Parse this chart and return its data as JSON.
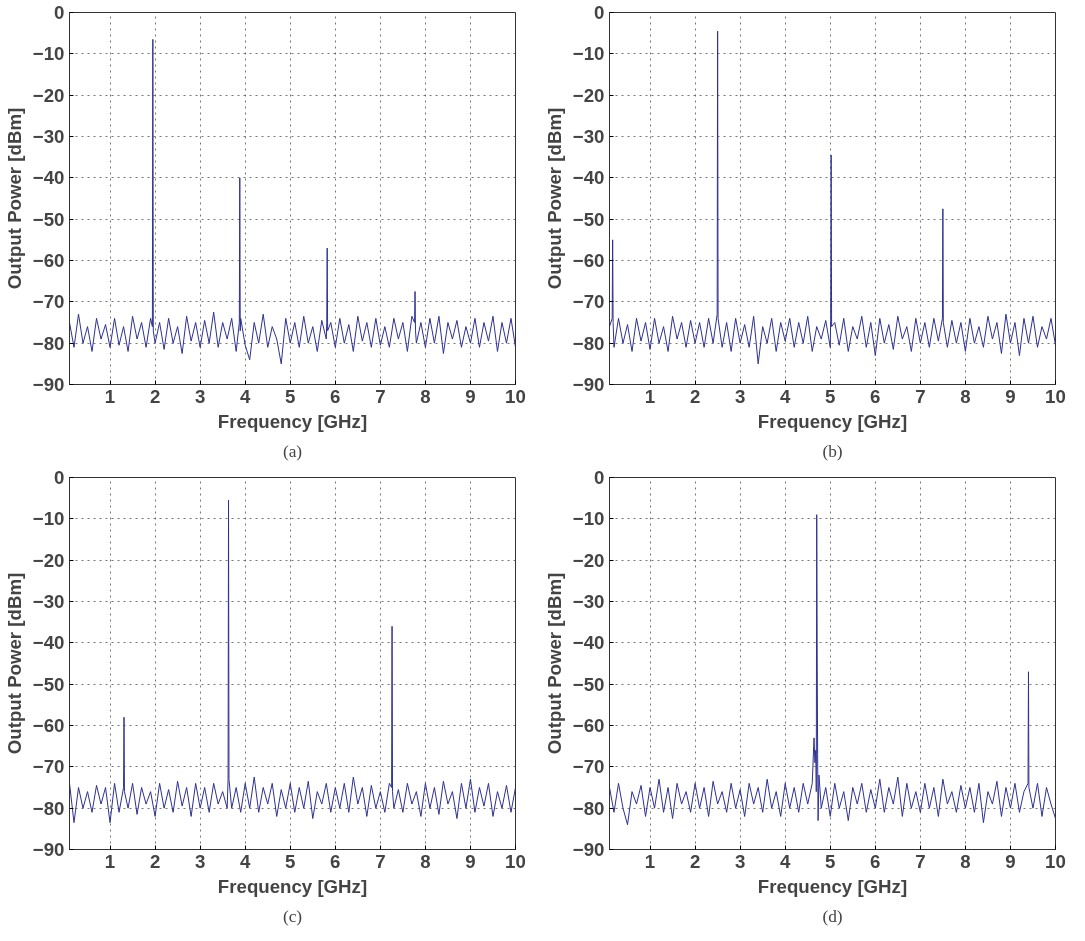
{
  "chart_data": [
    {
      "type": "line",
      "xlabel": "Frequency [GHz]",
      "ylabel": "Output Power [dBm]",
      "annotations": [
        "(a)"
      ],
      "xlim": [
        0.1,
        10
      ],
      "xticks": [
        1,
        2,
        3,
        4,
        5,
        6,
        7,
        8,
        9,
        10
      ],
      "ylim": [
        -90,
        0
      ],
      "yticks": [
        -90,
        -80,
        -70,
        -60,
        -50,
        -40,
        -30,
        -20,
        -10,
        0
      ],
      "grid": true,
      "series": [
        {
          "color": "#2e3192",
          "x": [
            0.1,
            0.2,
            0.3,
            0.4,
            0.5,
            0.6,
            0.7,
            0.8,
            0.9,
            1.0,
            1.1,
            1.2,
            1.3,
            1.4,
            1.5,
            1.6,
            1.7,
            1.8,
            1.9,
            1.94,
            1.95,
            1.96,
            2.0,
            2.1,
            2.2,
            2.3,
            2.4,
            2.5,
            2.6,
            2.7,
            2.8,
            2.9,
            3.0,
            3.1,
            3.2,
            3.3,
            3.4,
            3.5,
            3.6,
            3.7,
            3.8,
            3.87,
            3.88,
            3.89,
            3.9,
            4.0,
            4.1,
            4.2,
            4.3,
            4.4,
            4.5,
            4.6,
            4.7,
            4.8,
            4.9,
            5.0,
            5.1,
            5.2,
            5.3,
            5.4,
            5.5,
            5.6,
            5.7,
            5.8,
            5.81,
            5.82,
            5.83,
            5.9,
            6.0,
            6.1,
            6.2,
            6.3,
            6.4,
            6.5,
            6.6,
            6.7,
            6.8,
            6.9,
            7.0,
            7.1,
            7.2,
            7.3,
            7.4,
            7.5,
            7.6,
            7.7,
            7.76,
            7.77,
            7.78,
            7.8,
            7.9,
            8.0,
            8.1,
            8.2,
            8.3,
            8.4,
            8.5,
            8.6,
            8.7,
            8.8,
            8.9,
            9.0,
            9.1,
            9.2,
            9.3,
            9.4,
            9.5,
            9.6,
            9.7,
            9.8,
            9.9,
            10.0
          ],
          "values": [
            -75,
            -81,
            -73,
            -80,
            -76,
            -82,
            -74,
            -79,
            -75.5,
            -81,
            -74,
            -80.5,
            -76,
            -82,
            -73.5,
            -79,
            -75,
            -81,
            -74,
            -76,
            -6.5,
            -77,
            -80,
            -75,
            -81.5,
            -74,
            -80,
            -76,
            -82.5,
            -73.5,
            -79.5,
            -75,
            -81,
            -74.5,
            -80,
            -72.5,
            -81,
            -75,
            -79,
            -74,
            -82,
            -75,
            -40,
            -77,
            -74,
            -80.5,
            -84,
            -75,
            -80,
            -73,
            -81,
            -76,
            -79,
            -85,
            -74,
            -80,
            -75,
            -81,
            -73.5,
            -80,
            -76,
            -82,
            -74.5,
            -79,
            -75,
            -57,
            -77,
            -75,
            -81,
            -74,
            -80,
            -75.5,
            -82,
            -73.5,
            -79.5,
            -75,
            -81,
            -74,
            -80.5,
            -76,
            -81,
            -74,
            -79,
            -75,
            -82,
            -73.5,
            -75,
            -67.5,
            -77,
            -80,
            -75,
            -81,
            -74,
            -80,
            -73.5,
            -82.5,
            -75,
            -79,
            -74.5,
            -81,
            -76,
            -80,
            -74,
            -81,
            -75,
            -79.5,
            -73.5,
            -82,
            -75,
            -80,
            -74,
            -81
          ]
        }
      ]
    },
    {
      "type": "line",
      "xlabel": "Frequency [GHz]",
      "ylabel": "Output Power [dBm]",
      "annotations": [
        "(b)"
      ],
      "xlim": [
        0.1,
        10
      ],
      "xticks": [
        1,
        2,
        3,
        4,
        5,
        6,
        7,
        8,
        9,
        10
      ],
      "ylim": [
        -90,
        0
      ],
      "yticks": [
        -90,
        -80,
        -70,
        -60,
        -50,
        -40,
        -30,
        -20,
        -10,
        0
      ],
      "grid": true,
      "series": [
        {
          "color": "#2e3192",
          "x": [
            0.1,
            0.16,
            0.17,
            0.18,
            0.2,
            0.3,
            0.4,
            0.5,
            0.6,
            0.7,
            0.8,
            0.9,
            1.0,
            1.1,
            1.2,
            1.3,
            1.4,
            1.5,
            1.6,
            1.7,
            1.8,
            1.9,
            2.0,
            2.1,
            2.2,
            2.3,
            2.4,
            2.49,
            2.5,
            2.51,
            2.6,
            2.7,
            2.8,
            2.9,
            3.0,
            3.1,
            3.2,
            3.3,
            3.4,
            3.5,
            3.6,
            3.7,
            3.8,
            3.9,
            4.0,
            4.1,
            4.2,
            4.3,
            4.4,
            4.5,
            4.6,
            4.7,
            4.8,
            4.9,
            5.0,
            5.01,
            5.02,
            5.03,
            5.1,
            5.2,
            5.3,
            5.4,
            5.5,
            5.6,
            5.7,
            5.8,
            5.9,
            6.0,
            6.1,
            6.2,
            6.3,
            6.4,
            6.5,
            6.6,
            6.7,
            6.8,
            6.9,
            7.0,
            7.1,
            7.2,
            7.3,
            7.4,
            7.49,
            7.5,
            7.51,
            7.6,
            7.7,
            7.8,
            7.9,
            8.0,
            8.1,
            8.2,
            8.3,
            8.4,
            8.5,
            8.6,
            8.7,
            8.8,
            8.9,
            9.0,
            9.1,
            9.2,
            9.3,
            9.4,
            9.5,
            9.6,
            9.7,
            9.8,
            9.9,
            10.0
          ],
          "values": [
            -76,
            -74,
            -55,
            -75,
            -81,
            -74,
            -80,
            -75.5,
            -82,
            -74,
            -79.5,
            -75,
            -81.5,
            -74,
            -80,
            -76,
            -82,
            -73.5,
            -79,
            -75,
            -81,
            -74.5,
            -80,
            -75,
            -81,
            -74,
            -80,
            -73,
            -4.5,
            -74,
            -81,
            -75,
            -82,
            -74,
            -80,
            -75.5,
            -81,
            -73.5,
            -85,
            -76,
            -80,
            -74,
            -82,
            -75,
            -79.5,
            -74,
            -81,
            -75,
            -80,
            -73.5,
            -82,
            -76,
            -79,
            -74.5,
            -81,
            -74,
            -34.5,
            -76,
            -75,
            -80.5,
            -74,
            -82,
            -76,
            -79,
            -73.5,
            -81,
            -75,
            -83,
            -74,
            -80,
            -75.5,
            -81.5,
            -73.5,
            -79,
            -76,
            -82,
            -74,
            -80,
            -75,
            -81,
            -74,
            -79.5,
            -74,
            -47.5,
            -75,
            -81,
            -74.5,
            -80,
            -75,
            -82,
            -74,
            -80,
            -76,
            -81,
            -73.5,
            -79,
            -75,
            -82.5,
            -73,
            -80,
            -75,
            -83,
            -74,
            -80,
            -73.5,
            -81,
            -76,
            -79,
            -74,
            -80.5
          ]
        }
      ]
    },
    {
      "type": "line",
      "xlabel": "Frequency [GHz]",
      "ylabel": "Output Power [dBm]",
      "annotations": [
        "(c)"
      ],
      "xlim": [
        0.1,
        10
      ],
      "xticks": [
        1,
        2,
        3,
        4,
        5,
        6,
        7,
        8,
        9,
        10
      ],
      "ylim": [
        -90,
        0
      ],
      "yticks": [
        -90,
        -80,
        -70,
        -60,
        -50,
        -40,
        -30,
        -20,
        -10,
        0
      ],
      "grid": true,
      "series": [
        {
          "color": "#2e3192",
          "x": [
            0.1,
            0.2,
            0.3,
            0.4,
            0.5,
            0.6,
            0.7,
            0.8,
            0.9,
            1.0,
            1.1,
            1.2,
            1.3,
            1.31,
            1.32,
            1.4,
            1.5,
            1.6,
            1.7,
            1.8,
            1.9,
            2.0,
            2.1,
            2.2,
            2.3,
            2.4,
            2.5,
            2.6,
            2.7,
            2.8,
            2.9,
            3.0,
            3.1,
            3.2,
            3.3,
            3.4,
            3.5,
            3.6,
            3.62,
            3.63,
            3.64,
            3.7,
            3.8,
            3.9,
            4.0,
            4.1,
            4.2,
            4.3,
            4.4,
            4.5,
            4.6,
            4.7,
            4.8,
            4.9,
            5.0,
            5.1,
            5.2,
            5.3,
            5.4,
            5.5,
            5.6,
            5.7,
            5.8,
            5.9,
            6.0,
            6.1,
            6.2,
            6.3,
            6.4,
            6.5,
            6.6,
            6.7,
            6.8,
            6.9,
            7.0,
            7.1,
            7.2,
            7.25,
            7.26,
            7.27,
            7.3,
            7.4,
            7.5,
            7.6,
            7.7,
            7.8,
            7.9,
            8.0,
            8.1,
            8.2,
            8.3,
            8.4,
            8.5,
            8.6,
            8.7,
            8.8,
            8.9,
            9.0,
            9.1,
            9.2,
            9.3,
            9.4,
            9.5,
            9.6,
            9.7,
            9.8,
            9.9,
            10.0
          ],
          "values": [
            -74,
            -83.5,
            -75,
            -80,
            -76,
            -81,
            -74.5,
            -79,
            -75,
            -83.5,
            -74,
            -81,
            -75,
            -58,
            -76,
            -80,
            -74,
            -81.5,
            -75,
            -79,
            -76,
            -82,
            -74,
            -80,
            -75.5,
            -81,
            -73.5,
            -79.5,
            -75,
            -82,
            -74,
            -80,
            -75,
            -81,
            -74,
            -79,
            -76,
            -80,
            -73,
            -5.5,
            -73,
            -80,
            -75,
            -81,
            -74,
            -80,
            -72.5,
            -81,
            -75,
            -79,
            -74,
            -82,
            -75.5,
            -80,
            -74,
            -81,
            -75,
            -80,
            -73.5,
            -82.5,
            -76,
            -79,
            -74,
            -81,
            -75,
            -80,
            -74,
            -81,
            -72.5,
            -79,
            -75,
            -82,
            -74.5,
            -80,
            -76,
            -81,
            -74,
            -75,
            -36,
            -76,
            -80,
            -75.5,
            -81,
            -74,
            -79,
            -76,
            -82,
            -74,
            -80,
            -75,
            -81.5,
            -73.5,
            -79,
            -76,
            -82.5,
            -74,
            -80,
            -73,
            -81,
            -75,
            -79.5,
            -74,
            -82,
            -76,
            -80,
            -74.5,
            -81,
            -75
          ]
        }
      ]
    },
    {
      "type": "line",
      "xlabel": "Frequency [GHz]",
      "ylabel": "Output Power [dBm]",
      "annotations": [
        "(d)"
      ],
      "xlim": [
        0.1,
        10
      ],
      "xticks": [
        1,
        2,
        3,
        4,
        5,
        6,
        7,
        8,
        9,
        10
      ],
      "ylim": [
        -90,
        0
      ],
      "yticks": [
        -90,
        -80,
        -70,
        -60,
        -50,
        -40,
        -30,
        -20,
        -10,
        0
      ],
      "grid": true,
      "series": [
        {
          "color": "#2e3192",
          "x": [
            0.1,
            0.2,
            0.3,
            0.4,
            0.5,
            0.6,
            0.7,
            0.8,
            0.9,
            1.0,
            1.1,
            1.2,
            1.3,
            1.4,
            1.5,
            1.6,
            1.7,
            1.8,
            1.9,
            2.0,
            2.1,
            2.2,
            2.3,
            2.4,
            2.5,
            2.6,
            2.7,
            2.8,
            2.9,
            3.0,
            3.1,
            3.2,
            3.3,
            3.4,
            3.5,
            3.6,
            3.7,
            3.8,
            3.9,
            4.0,
            4.1,
            4.2,
            4.3,
            4.4,
            4.5,
            4.6,
            4.64,
            4.66,
            4.68,
            4.69,
            4.7,
            4.71,
            4.72,
            4.73,
            4.75,
            4.8,
            4.9,
            5.0,
            5.1,
            5.2,
            5.3,
            5.4,
            5.5,
            5.6,
            5.7,
            5.8,
            5.9,
            6.0,
            6.1,
            6.2,
            6.3,
            6.4,
            6.5,
            6.6,
            6.7,
            6.8,
            6.9,
            7.0,
            7.1,
            7.2,
            7.3,
            7.4,
            7.5,
            7.6,
            7.7,
            7.8,
            7.9,
            8.0,
            8.1,
            8.2,
            8.3,
            8.4,
            8.5,
            8.6,
            8.7,
            8.8,
            8.9,
            9.0,
            9.1,
            9.2,
            9.3,
            9.39,
            9.4,
            9.41,
            9.5,
            9.6,
            9.7,
            9.8,
            9.9,
            10.0
          ],
          "values": [
            -75,
            -81,
            -74,
            -80,
            -84,
            -76,
            -79,
            -74.5,
            -82,
            -75,
            -80,
            -73,
            -81,
            -75,
            -82.5,
            -74,
            -79,
            -76,
            -81,
            -74,
            -80,
            -75,
            -82,
            -73.5,
            -79,
            -76,
            -81,
            -74,
            -80,
            -75.5,
            -82,
            -74,
            -79,
            -75,
            -81,
            -73,
            -80,
            -76,
            -82,
            -74,
            -80,
            -75,
            -81,
            -74,
            -79,
            -74,
            -63,
            -69,
            -66,
            -76,
            -9,
            -42,
            -67,
            -83,
            -72,
            -80,
            -75,
            -82,
            -74,
            -80,
            -76,
            -83,
            -75,
            -79,
            -74,
            -81,
            -75.5,
            -80,
            -73,
            -81,
            -75,
            -79,
            -72.5,
            -82,
            -74,
            -80,
            -76,
            -81,
            -74,
            -80,
            -75,
            -82,
            -73,
            -79,
            -76,
            -81,
            -74.5,
            -80,
            -75,
            -81,
            -74,
            -83.5,
            -76,
            -79,
            -73.5,
            -82,
            -75,
            -80,
            -74,
            -81,
            -76,
            -74,
            -47,
            -75,
            -80,
            -74,
            -82,
            -75,
            -79,
            -82.5
          ]
        }
      ]
    }
  ]
}
